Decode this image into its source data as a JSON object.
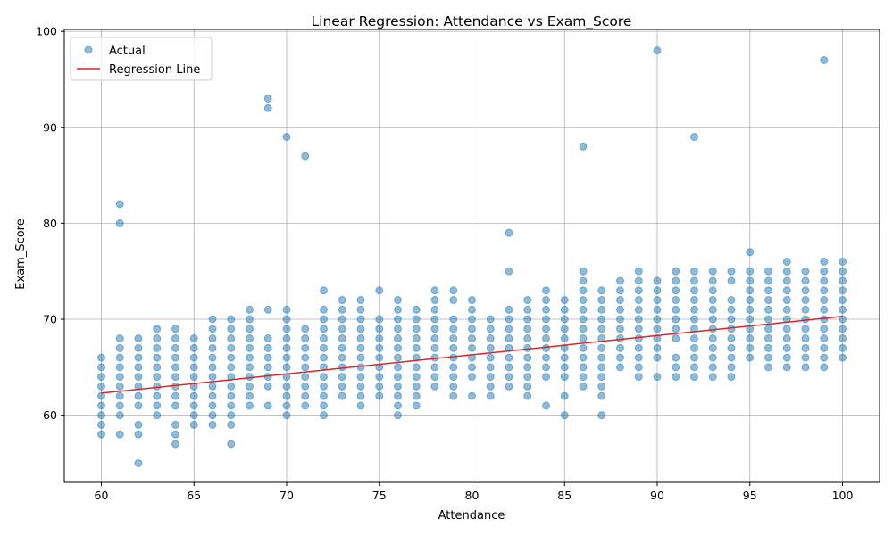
{
  "chart_data": {
    "type": "scatter",
    "title": "Linear Regression: Attendance vs Exam_Score",
    "xlabel": "Attendance",
    "ylabel": "Exam_Score",
    "xlim": [
      58,
      102
    ],
    "ylim": [
      53,
      100.2
    ],
    "xticks": [
      60,
      65,
      70,
      75,
      80,
      85,
      90,
      95,
      100
    ],
    "yticks": [
      60,
      70,
      80,
      90,
      100
    ],
    "grid": true,
    "legend_position": "top-left",
    "series": [
      {
        "name": "Actual",
        "kind": "scatter",
        "color": "#1f77b4",
        "opacity": 0.5,
        "columns": [
          [
            60,
            [
              58,
              59,
              60,
              61,
              62,
              63,
              64,
              65,
              66
            ]
          ],
          [
            61,
            [
              58,
              60,
              61,
              62,
              63,
              64,
              65,
              66,
              67,
              68,
              80,
              82
            ]
          ],
          [
            62,
            [
              55,
              58,
              59,
              61,
              62,
              63,
              64,
              65,
              66,
              67,
              68
            ]
          ],
          [
            63,
            [
              60,
              61,
              62,
              63,
              64,
              65,
              66,
              67,
              68,
              69
            ]
          ],
          [
            64,
            [
              57,
              58,
              59,
              61,
              62,
              63,
              64,
              65,
              66,
              67,
              68,
              69
            ]
          ],
          [
            65,
            [
              59,
              60,
              61,
              62,
              63,
              64,
              65,
              66,
              67,
              68
            ]
          ],
          [
            66,
            [
              59,
              60,
              61,
              62,
              63,
              64,
              65,
              66,
              67,
              68,
              69,
              70
            ]
          ],
          [
            67,
            [
              57,
              59,
              60,
              61,
              62,
              63,
              64,
              65,
              66,
              67,
              68,
              69,
              70
            ]
          ],
          [
            68,
            [
              61,
              62,
              63,
              64,
              65,
              66,
              67,
              68,
              69,
              70,
              71
            ]
          ],
          [
            69,
            [
              61,
              63,
              64,
              65,
              66,
              67,
              68,
              71,
              92,
              93
            ]
          ],
          [
            70,
            [
              60,
              61,
              62,
              63,
              64,
              65,
              66,
              67,
              68,
              69,
              70,
              71,
              89
            ]
          ],
          [
            71,
            [
              61,
              62,
              63,
              64,
              65,
              66,
              67,
              68,
              69,
              87
            ]
          ],
          [
            72,
            [
              60,
              61,
              62,
              63,
              64,
              65,
              66,
              67,
              68,
              69,
              70,
              71,
              73
            ]
          ],
          [
            73,
            [
              62,
              63,
              64,
              65,
              66,
              67,
              68,
              69,
              70,
              71,
              72
            ]
          ],
          [
            74,
            [
              61,
              62,
              63,
              64,
              65,
              66,
              67,
              68,
              69,
              70,
              71,
              72
            ]
          ],
          [
            75,
            [
              62,
              63,
              64,
              65,
              66,
              67,
              68,
              69,
              70,
              73
            ]
          ],
          [
            76,
            [
              60,
              61,
              62,
              63,
              64,
              65,
              66,
              67,
              68,
              69,
              70,
              71,
              72
            ]
          ],
          [
            77,
            [
              61,
              62,
              63,
              64,
              65,
              66,
              67,
              68,
              69,
              70,
              71
            ]
          ],
          [
            78,
            [
              63,
              64,
              65,
              66,
              67,
              68,
              69,
              70,
              71,
              72,
              73
            ]
          ],
          [
            79,
            [
              62,
              63,
              64,
              65,
              66,
              67,
              68,
              69,
              70,
              72,
              73
            ]
          ],
          [
            80,
            [
              62,
              64,
              65,
              66,
              67,
              68,
              69,
              70,
              71,
              72
            ]
          ],
          [
            81,
            [
              62,
              63,
              64,
              65,
              66,
              67,
              68,
              69,
              70
            ]
          ],
          [
            82,
            [
              63,
              64,
              65,
              66,
              67,
              68,
              69,
              70,
              71,
              75,
              79
            ]
          ],
          [
            83,
            [
              62,
              63,
              64,
              65,
              66,
              67,
              68,
              69,
              70,
              71,
              72
            ]
          ],
          [
            84,
            [
              61,
              64,
              65,
              66,
              67,
              68,
              69,
              70,
              71,
              72,
              73
            ]
          ],
          [
            85,
            [
              60,
              62,
              64,
              65,
              66,
              67,
              68,
              69,
              70,
              71,
              72
            ]
          ],
          [
            86,
            [
              63,
              64,
              65,
              66,
              67,
              68,
              69,
              70,
              71,
              72,
              73,
              74,
              75,
              88
            ]
          ],
          [
            87,
            [
              60,
              62,
              63,
              64,
              65,
              66,
              67,
              68,
              69,
              70,
              71,
              72,
              73
            ]
          ],
          [
            88,
            [
              65,
              66,
              67,
              68,
              69,
              70,
              71,
              72,
              73,
              74
            ]
          ],
          [
            89,
            [
              64,
              65,
              66,
              67,
              68,
              69,
              70,
              71,
              72,
              73,
              74,
              75
            ]
          ],
          [
            90,
            [
              64,
              66,
              67,
              68,
              69,
              70,
              71,
              72,
              73,
              74,
              98
            ]
          ],
          [
            91,
            [
              64,
              65,
              66,
              68,
              69,
              70,
              71,
              72,
              73,
              74,
              75
            ]
          ],
          [
            92,
            [
              64,
              65,
              66,
              67,
              68,
              69,
              70,
              71,
              72,
              73,
              74,
              75,
              89
            ]
          ],
          [
            93,
            [
              64,
              65,
              66,
              67,
              68,
              69,
              70,
              71,
              72,
              73,
              74,
              75
            ]
          ],
          [
            94,
            [
              64,
              65,
              66,
              67,
              68,
              69,
              70,
              71,
              72,
              74,
              75
            ]
          ],
          [
            95,
            [
              66,
              67,
              68,
              69,
              70,
              71,
              72,
              73,
              74,
              75,
              77
            ]
          ],
          [
            96,
            [
              65,
              66,
              67,
              68,
              69,
              70,
              71,
              72,
              73,
              74,
              75
            ]
          ],
          [
            97,
            [
              65,
              66,
              67,
              68,
              69,
              70,
              71,
              72,
              73,
              74,
              75,
              76
            ]
          ],
          [
            98,
            [
              65,
              66,
              67,
              68,
              69,
              70,
              71,
              72,
              73,
              74,
              75
            ]
          ],
          [
            99,
            [
              65,
              66,
              67,
              68,
              69,
              70,
              71,
              72,
              73,
              74,
              75,
              76,
              97
            ]
          ],
          [
            100,
            [
              66,
              67,
              68,
              69,
              70,
              71,
              72,
              73,
              74,
              75,
              76
            ]
          ]
        ]
      },
      {
        "name": "Regression Line",
        "kind": "line",
        "color": "#d62728",
        "x": [
          60,
          100
        ],
        "y": [
          62.3,
          70.3
        ]
      }
    ]
  }
}
